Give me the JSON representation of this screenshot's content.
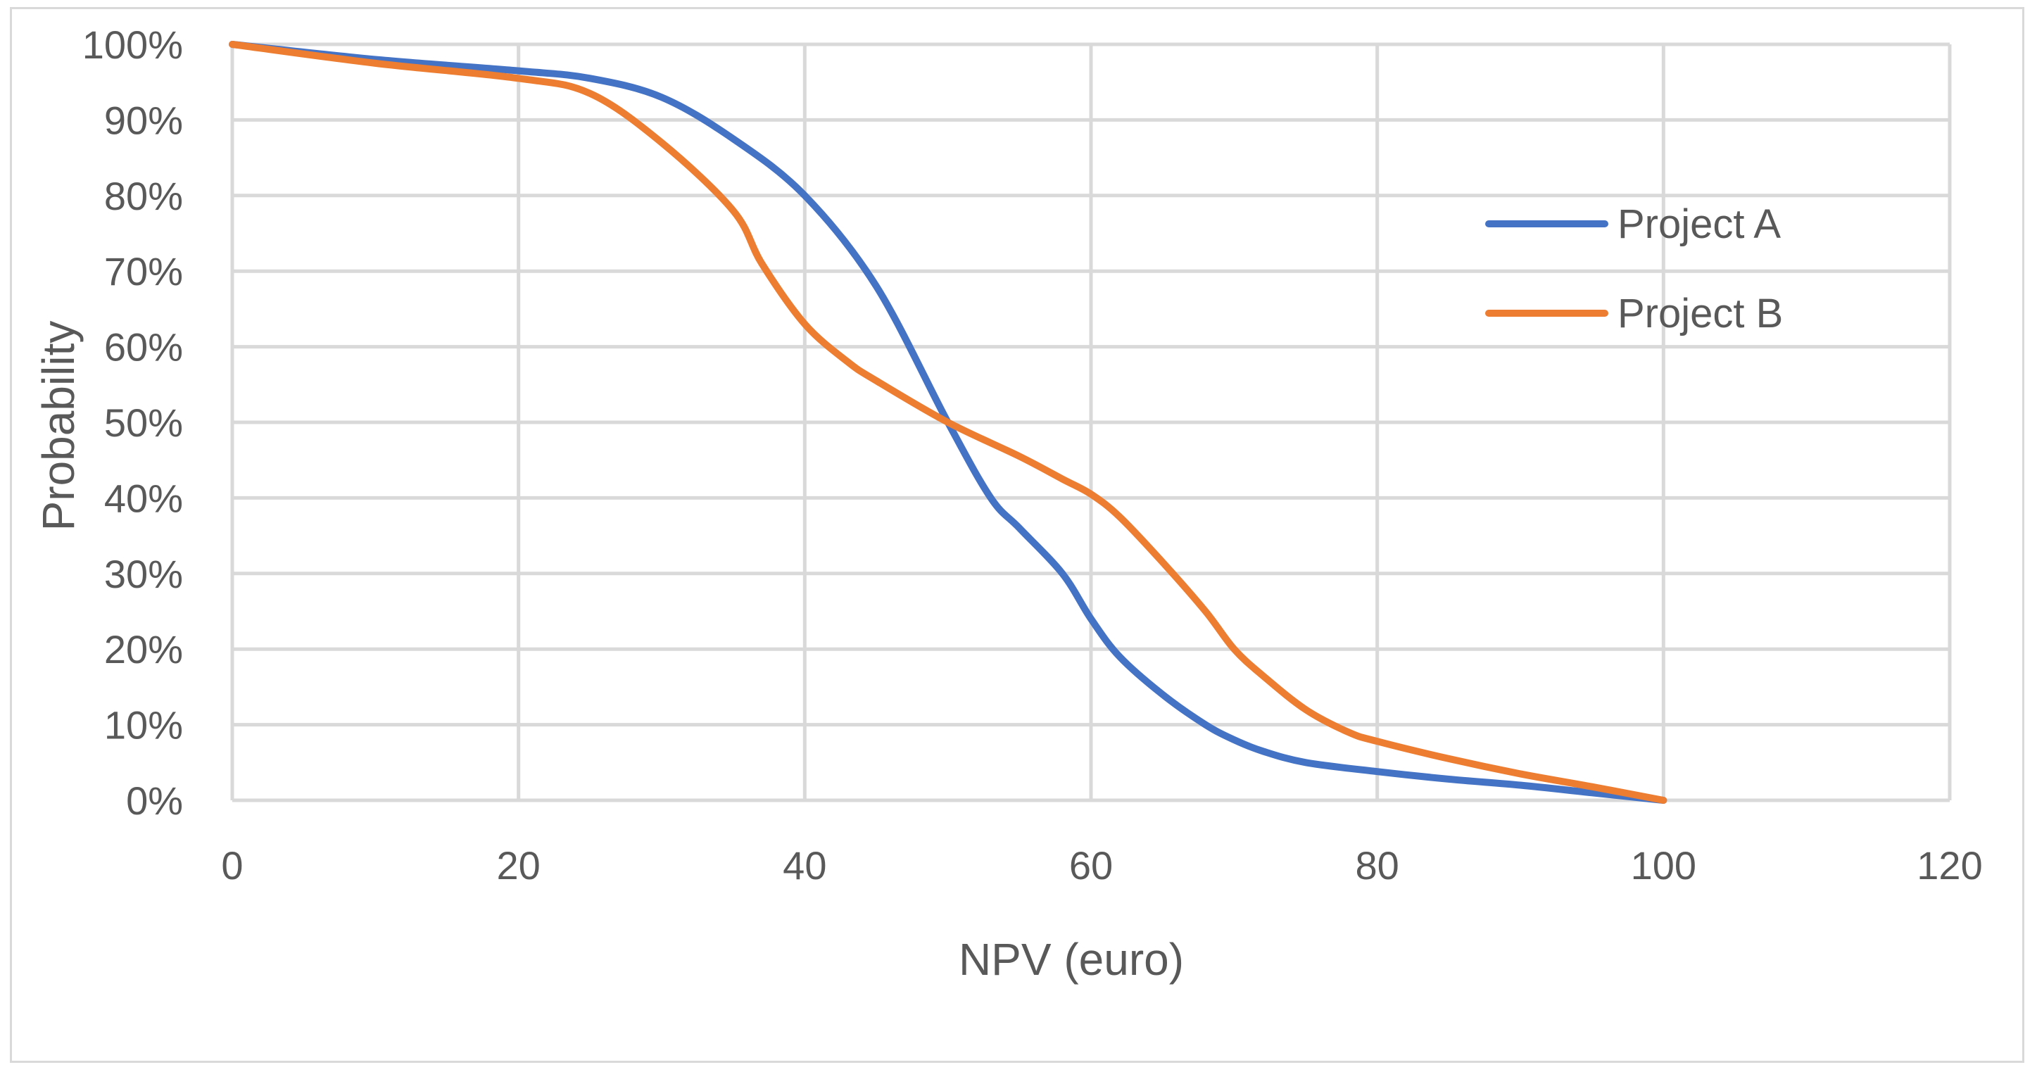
{
  "chart_data": {
    "type": "line",
    "title": "",
    "xlabel": "NPV (euro)",
    "ylabel": "Probability",
    "xlim": [
      0,
      120
    ],
    "ylim": [
      0,
      1
    ],
    "x_ticks": [
      "0",
      "20",
      "40",
      "60",
      "80",
      "100",
      "120"
    ],
    "y_ticks": [
      "0%",
      "10%",
      "20%",
      "30%",
      "40%",
      "50%",
      "60%",
      "70%",
      "80%",
      "90%",
      "100%"
    ],
    "grid": true,
    "legend_position": "right",
    "series": [
      {
        "name": "Project A",
        "color": "#4472c4",
        "x": [
          0,
          10,
          20,
          25,
          30,
          35,
          40,
          45,
          50,
          53,
          55,
          58,
          60,
          62,
          65,
          68,
          70,
          72,
          75,
          80,
          85,
          90,
          95,
          100
        ],
        "y": [
          1.0,
          0.98,
          0.965,
          0.955,
          0.93,
          0.875,
          0.8,
          0.68,
          0.5,
          0.4,
          0.36,
          0.3,
          0.24,
          0.19,
          0.14,
          0.1,
          0.08,
          0.065,
          0.05,
          0.038,
          0.028,
          0.02,
          0.01,
          0.0
        ]
      },
      {
        "name": "Project B",
        "color": "#ed7d31",
        "x": [
          0,
          10,
          20,
          25,
          30,
          35,
          37,
          40,
          43,
          45,
          50,
          55,
          58,
          60,
          62,
          65,
          68,
          70,
          72,
          75,
          78,
          80,
          85,
          90,
          95,
          100
        ],
        "y": [
          1.0,
          0.975,
          0.955,
          0.935,
          0.87,
          0.78,
          0.71,
          0.63,
          0.58,
          0.555,
          0.5,
          0.455,
          0.425,
          0.405,
          0.375,
          0.315,
          0.25,
          0.2,
          0.165,
          0.12,
          0.09,
          0.078,
          0.055,
          0.035,
          0.018,
          0.0
        ]
      }
    ]
  }
}
